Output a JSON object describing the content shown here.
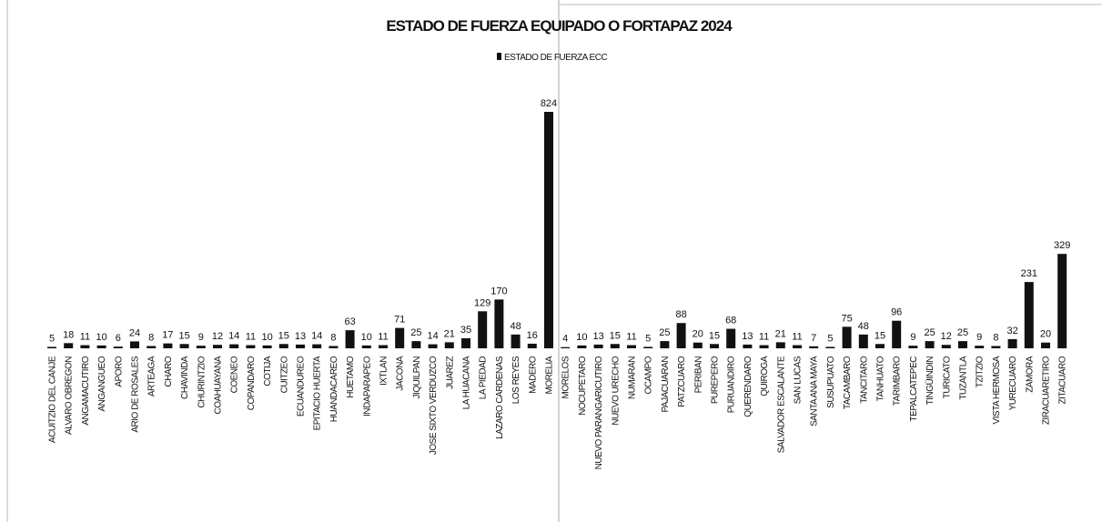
{
  "chart_data": {
    "type": "bar",
    "title": "ESTADO DE FUERZA EQUIPADO O FORTAPAZ 2024",
    "series": [
      {
        "name": "ESTADO DE FUERZA ECC",
        "color": "#111111",
        "values": [
          5,
          18,
          11,
          10,
          6,
          24,
          8,
          17,
          15,
          9,
          12,
          14,
          11,
          10,
          15,
          13,
          14,
          8,
          63,
          10,
          11,
          71,
          25,
          14,
          21,
          35,
          129,
          170,
          48,
          16,
          824,
          4,
          10,
          13,
          15,
          11,
          5,
          25,
          88,
          20,
          15,
          68,
          13,
          11,
          21,
          11,
          7,
          5,
          75,
          48,
          15,
          96,
          9,
          25,
          12,
          25,
          9,
          8,
          32,
          231,
          20,
          329
        ]
      }
    ],
    "categories": [
      "ACUITZIO DEL CANJE",
      "ALVARO OBREGON",
      "ANGAMACUTIRO",
      "ANGANGUEO",
      "APORO",
      "ARIO DE ROSALES",
      "ARTEAGA",
      "CHARO",
      "CHAVINDA",
      "CHURINTZIO",
      "COAHUAYANA",
      "COENEO",
      "COPANDARO",
      "COTIJA",
      "CUITZEO",
      "ECUANDUREO",
      "EPITACIO HUERTA",
      "HUANDACAREO",
      "HUETAMO",
      "INDAPARAPEO",
      "IXTLAN",
      "JACONA",
      "JIQUILPAN",
      "JOSE SIXTO VERDUZCO",
      "JUAREZ",
      "LA HUACANA",
      "LA PIEDAD",
      "LAZARO CARDENAS",
      "LOS REYES",
      "MADERO",
      "MORELIA",
      "MORELOS",
      "NOCUPETARO",
      "NUEVO PARANGARICUTIRO",
      "NUEVO URECHO",
      "NUMARAN",
      "OCAMPO",
      "PAJACUARAN",
      "PATZCUARO",
      "PERIBAN",
      "PUREPERO",
      "PURUANDIRO",
      "QUERENDARO",
      "QUIROGA",
      "SALVADOR ESCALANTE",
      "SAN LUCAS",
      "SANTA ANA MAYA",
      "SUSUPUATO",
      "TACAMBARO",
      "TANCITARO",
      "TANHUATO",
      "TARIMBARO",
      "TEPALCATEPEC",
      "TINGÜINDIN",
      "TURICATO",
      "TUZANTLA",
      "TZITZIO",
      "VISTA HERMOSA",
      "YURECUARO",
      "ZAMORA",
      "ZIRACUARETIRO",
      "ZITACUARO"
    ]
  }
}
